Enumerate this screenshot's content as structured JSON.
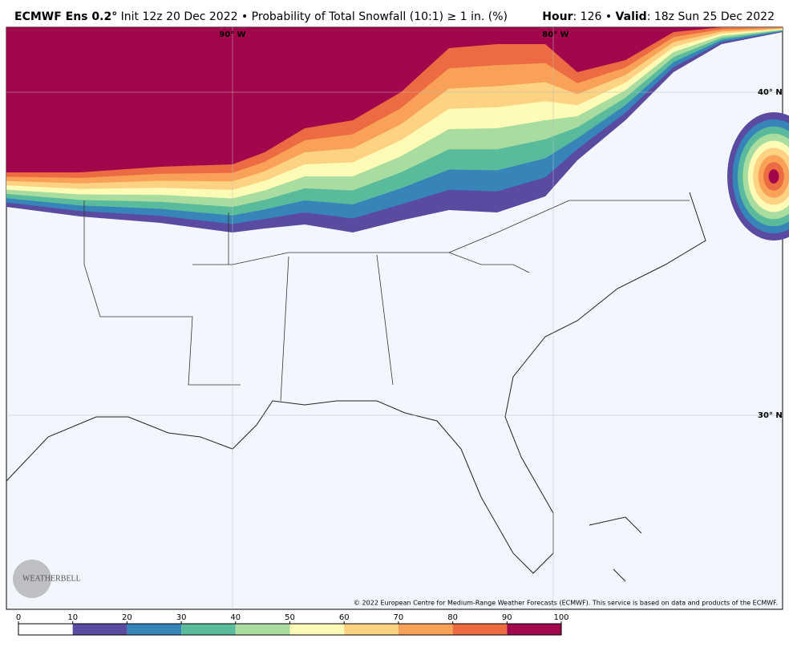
{
  "header": {
    "left": [
      {
        "text": "ECMWF Ens 0.2°",
        "bold": true
      },
      {
        "text": " Init 12z 20 Dec 2022 • Probability of Total Snowfall (10:1) ≥ 1 in. (%)",
        "bold": false
      }
    ],
    "right": [
      {
        "text": "Hour",
        "bold": true
      },
      {
        "text": ": 126 • ",
        "bold": false
      },
      {
        "text": "Valid",
        "bold": true
      },
      {
        "text": ": 18z Sun 25 Dec 2022",
        "bold": false
      }
    ]
  },
  "map": {
    "lat_labels": [
      "40° N",
      "30° N"
    ],
    "lon_labels": [
      "90° W",
      "80° W"
    ],
    "logo": "WEATHERBELL",
    "credit": "© 2022 European Centre for Medium-Range Weather Forecasts (ECMWF). This service is based on data and products of the ECMWF."
  },
  "colorbar": {
    "ticks": [
      0,
      10,
      20,
      30,
      40,
      50,
      60,
      70,
      80,
      90,
      100
    ],
    "colors": [
      "#ffffff",
      "#5a4aa0",
      "#3684b8",
      "#5abb9c",
      "#a9dc9f",
      "#fdfbb5",
      "#fdd283",
      "#f9a257",
      "#ec6b42",
      "#a2064b"
    ]
  }
}
